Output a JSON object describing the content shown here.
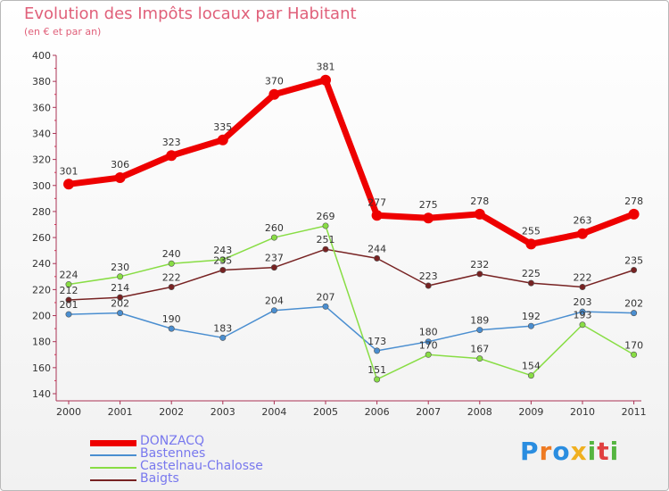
{
  "chart_data": {
    "type": "line",
    "title": "Evolution des Impôts locaux par Habitant",
    "subtitle": "(en € et par an)",
    "xlabel": "",
    "ylabel": "",
    "x": [
      "2000",
      "2001",
      "2002",
      "2003",
      "2004",
      "2005",
      "2006",
      "2007",
      "2008",
      "2009",
      "2010",
      "2011"
    ],
    "ylim": [
      140,
      400
    ],
    "yticks": [
      140,
      160,
      180,
      200,
      220,
      240,
      260,
      280,
      300,
      320,
      340,
      360,
      380,
      400
    ],
    "grid": false,
    "legend_position": "bottom-left",
    "series": [
      {
        "name": "DONZACQ",
        "color": "#ee0000",
        "values": [
          301,
          306,
          323,
          335,
          370,
          381,
          277,
          275,
          278,
          255,
          263,
          278
        ]
      },
      {
        "name": "Bastennes",
        "color": "#4a8ed0",
        "values": [
          201,
          202,
          190,
          183,
          204,
          207,
          173,
          180,
          189,
          192,
          203,
          202
        ]
      },
      {
        "name": "Castelnau-Chalosse",
        "color": "#88dd44",
        "values": [
          224,
          230,
          240,
          243,
          260,
          269,
          151,
          170,
          167,
          154,
          193,
          170
        ]
      },
      {
        "name": "Baigts",
        "color": "#772222",
        "values": [
          212,
          214,
          222,
          235,
          237,
          251,
          244,
          223,
          232,
          225,
          222,
          235
        ]
      }
    ]
  },
  "logo": {
    "text": "Proxiti",
    "letters": [
      {
        "ch": "P",
        "color": "#2a8de0"
      },
      {
        "ch": "r",
        "color": "#ee7a22"
      },
      {
        "ch": "o",
        "color": "#2a8de0"
      },
      {
        "ch": "x",
        "color": "#f0b020"
      },
      {
        "ch": "i",
        "color": "#55b540"
      },
      {
        "ch": "t",
        "color": "#e04040"
      },
      {
        "ch": "i",
        "color": "#55b540"
      }
    ]
  }
}
